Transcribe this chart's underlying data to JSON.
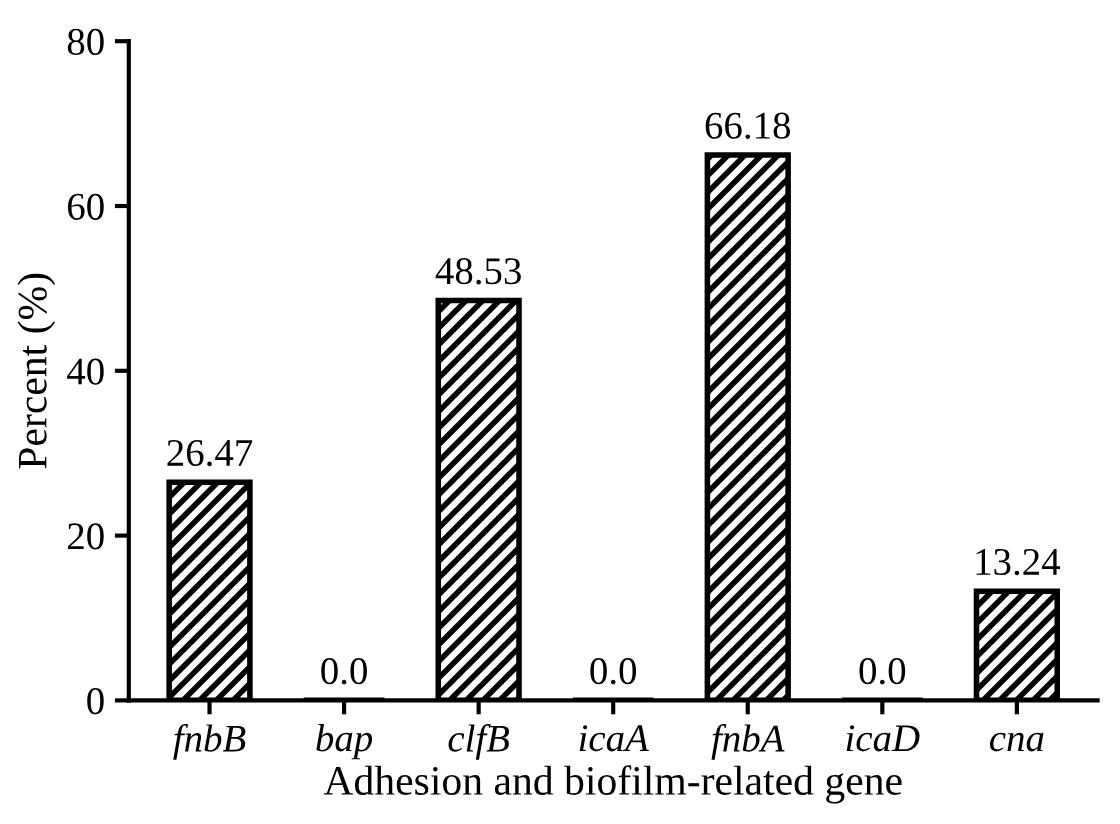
{
  "chart_data": {
    "type": "bar",
    "xlabel": "Adhesion and biofilm-related gene",
    "ylabel": "Percent (%)",
    "categories": [
      "fnbB",
      "bap",
      "clfB",
      "icaA",
      "fnbA",
      "icaD",
      "cna"
    ],
    "values": [
      26.47,
      0,
      48.53,
      0,
      66.18,
      0,
      13.24
    ],
    "value_labels": [
      "26.47",
      "0.0",
      "48.53",
      "0.0",
      "66.18",
      "0.0",
      "13.24"
    ],
    "color": "#000000",
    "ylim": [
      0,
      80
    ],
    "yticks": [
      0,
      20,
      40,
      60,
      80
    ],
    "grid": false,
    "legend": false
  }
}
